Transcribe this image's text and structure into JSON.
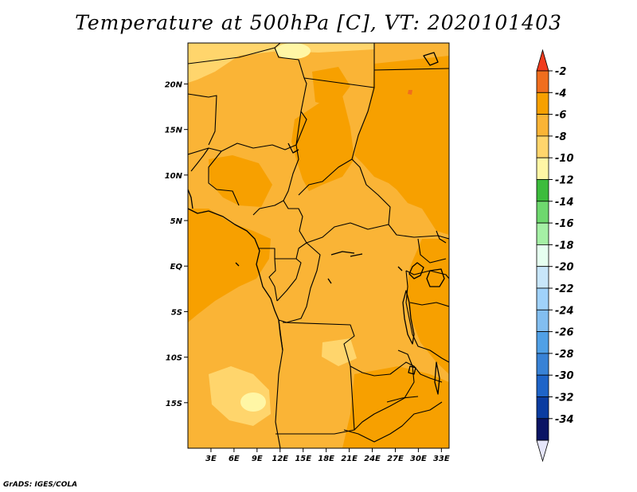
{
  "title": "Temperature at 500hPa [C], VT: 2020101403",
  "credit": "GrADS: IGES/COLA",
  "map": {
    "variable": "Temperature at 500hPa",
    "units": "C",
    "valid_time": "2020101403",
    "lon_range": [
      0,
      34
    ],
    "lat_range": [
      -20,
      24.5
    ],
    "x_ticks": [
      "3E",
      "6E",
      "9E",
      "12E",
      "15E",
      "18E",
      "21E",
      "24E",
      "27E",
      "30E",
      "33E"
    ],
    "y_ticks": [
      "20N",
      "15N",
      "10N",
      "5N",
      "EQ",
      "5S",
      "10S",
      "15S"
    ]
  },
  "colorbar": {
    "labels": [
      "-2",
      "-4",
      "-6",
      "-8",
      "-10",
      "-12",
      "-14",
      "-16",
      "-18",
      "-20",
      "-22",
      "-24",
      "-26",
      "-28",
      "-30",
      "-32",
      "-34"
    ],
    "colors": [
      "#f06e1e",
      "#f7a000",
      "#fab436",
      "#ffd56c",
      "#fff6a5",
      "#3cbc3c",
      "#6ed86e",
      "#a5f0a5",
      "#e6fff0",
      "#c8e6fa",
      "#a0d2fa",
      "#82bef0",
      "#50a0e6",
      "#3882d6",
      "#1e64c8",
      "#0a3ca0",
      "#0a1464"
    ],
    "top_arrow_color": "#f03c1e",
    "bottom_arrow_color": "#e6e6fa"
  },
  "palette": {
    "warm_dark": "#f7a000",
    "warm_mid": "#fab436",
    "warm_light": "#ffd56c",
    "warm_pale": "#fff6a5",
    "accent_red": "#f06e1e"
  }
}
